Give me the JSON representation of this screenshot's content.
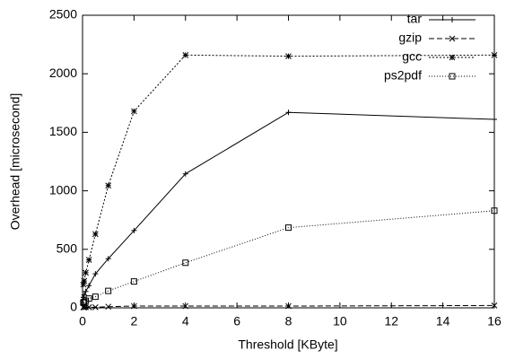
{
  "chart_data": {
    "type": "line",
    "x_label": "Threshold [KByte]",
    "y_label": "Overhead [microsecond]",
    "x": [
      0.03125,
      0.0625,
      0.125,
      0.25,
      0.5,
      1,
      2,
      4,
      8,
      16
    ],
    "series": [
      {
        "name": "tar",
        "color": "#000000",
        "marker": "plus",
        "values": [
          90,
          110,
          140,
          190,
          290,
          420,
          660,
          1145,
          1670,
          1610
        ]
      },
      {
        "name": "gzip",
        "color": "#000000",
        "marker": "cross",
        "values": [
          5,
          5,
          5,
          5,
          5,
          10,
          15,
          15,
          15,
          20
        ]
      },
      {
        "name": "gcc",
        "color": "#000000",
        "marker": "star",
        "values": [
          200,
          230,
          300,
          410,
          630,
          1045,
          1680,
          2160,
          2150,
          2160
        ]
      },
      {
        "name": "ps2pdf",
        "color": "#000000",
        "marker": "square",
        "values": [
          45,
          50,
          60,
          80,
          95,
          145,
          225,
          385,
          685,
          830
        ]
      }
    ],
    "xlim": [
      0,
      16
    ],
    "xticks": [
      0,
      2,
      4,
      6,
      8,
      10,
      12,
      14,
      16
    ],
    "ylim": [
      0,
      2500
    ],
    "yticks": [
      0,
      500,
      1000,
      1500,
      2000,
      2500
    ],
    "grid": false,
    "legend": "top-right"
  }
}
